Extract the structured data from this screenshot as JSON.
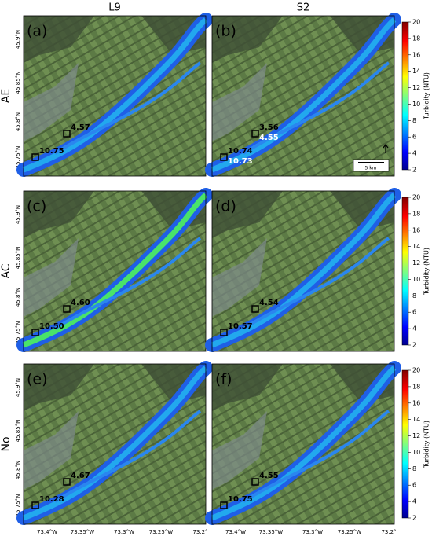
{
  "columns": [
    "L9",
    "S2"
  ],
  "rows": [
    {
      "label": "AE",
      "panels": [
        {
          "label": "(a)",
          "values": [
            "4.57",
            "10.75"
          ]
        },
        {
          "label": "(b)",
          "values": [
            "3.56",
            "10.74"
          ],
          "white_values": [
            "4.55",
            "10.73"
          ]
        }
      ]
    },
    {
      "label": "AC",
      "panels": [
        {
          "label": "(c)",
          "values": [
            "4.60",
            "10.50"
          ]
        },
        {
          "label": "(d)",
          "values": [
            "4.54",
            "10.57"
          ]
        }
      ]
    },
    {
      "label": "No",
      "panels": [
        {
          "label": "(e)",
          "values": [
            "4.67",
            "10.28"
          ]
        },
        {
          "label": "(f)",
          "values": [
            "4.55",
            "10.75"
          ]
        }
      ]
    }
  ],
  "lat_ticks": [
    "45.9°N",
    "45.85°N",
    "45.8°N",
    "45.75°N"
  ],
  "lon_ticks": [
    "73.4°W",
    "73.35°W",
    "73.3°W",
    "73.25°W",
    "73.2°"
  ],
  "colorbar": {
    "label": "Turbidity (NTU)",
    "ticks": [
      2,
      4,
      6,
      8,
      10,
      12,
      14,
      16,
      18,
      20
    ]
  },
  "scale_bar": "5 km"
}
